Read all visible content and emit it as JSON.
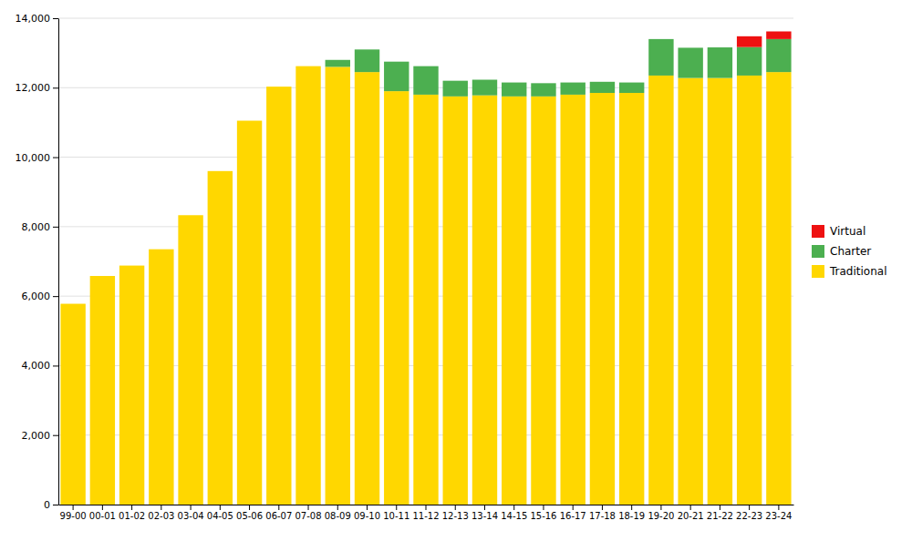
{
  "chart_data": {
    "type": "bar",
    "stacked": true,
    "grid": true,
    "legend": "right",
    "categories": [
      "99-00",
      "00-01",
      "01-02",
      "02-03",
      "03-04",
      "04-05",
      "05-06",
      "06-07",
      "07-08",
      "08-09",
      "09-10",
      "10-11",
      "11-12",
      "12-13",
      "13-14",
      "14-15",
      "15-16",
      "16-17",
      "17-18",
      "18-19",
      "19-20",
      "20-21",
      "21-22",
      "22-23",
      "23-24"
    ],
    "series": [
      {
        "name": "Traditional",
        "color": "#FFD700",
        "values": [
          5780,
          6580,
          6880,
          7350,
          8330,
          9600,
          11050,
          12030,
          12620,
          12600,
          12450,
          11900,
          11800,
          11750,
          11780,
          11750,
          11750,
          11800,
          11850,
          11850,
          12350,
          12280,
          12280,
          12350,
          12450
        ]
      },
      {
        "name": "Charter",
        "color": "#4CAF50",
        "values": [
          0,
          0,
          0,
          0,
          0,
          0,
          0,
          0,
          0,
          200,
          650,
          850,
          820,
          450,
          450,
          400,
          380,
          350,
          320,
          300,
          1050,
          870,
          880,
          820,
          950
        ]
      },
      {
        "name": "Virtual",
        "color": "#EE1111",
        "values": [
          0,
          0,
          0,
          0,
          0,
          0,
          0,
          0,
          0,
          0,
          0,
          0,
          0,
          0,
          0,
          0,
          0,
          0,
          0,
          0,
          0,
          0,
          0,
          310,
          220
        ]
      }
    ],
    "ylim": [
      0,
      14000
    ],
    "yticks": [
      0,
      {
        "value": 2000,
        "label": "2,000"
      },
      {
        "value": 4000,
        "label": "4,000"
      },
      {
        "value": 6000,
        "label": "6,000"
      },
      {
        "value": 8000,
        "label": "8,000"
      },
      {
        "value": 10000,
        "label": "10,000"
      },
      {
        "value": 12000,
        "label": "12,000"
      },
      {
        "value": 14000,
        "label": "14,000"
      }
    ]
  }
}
